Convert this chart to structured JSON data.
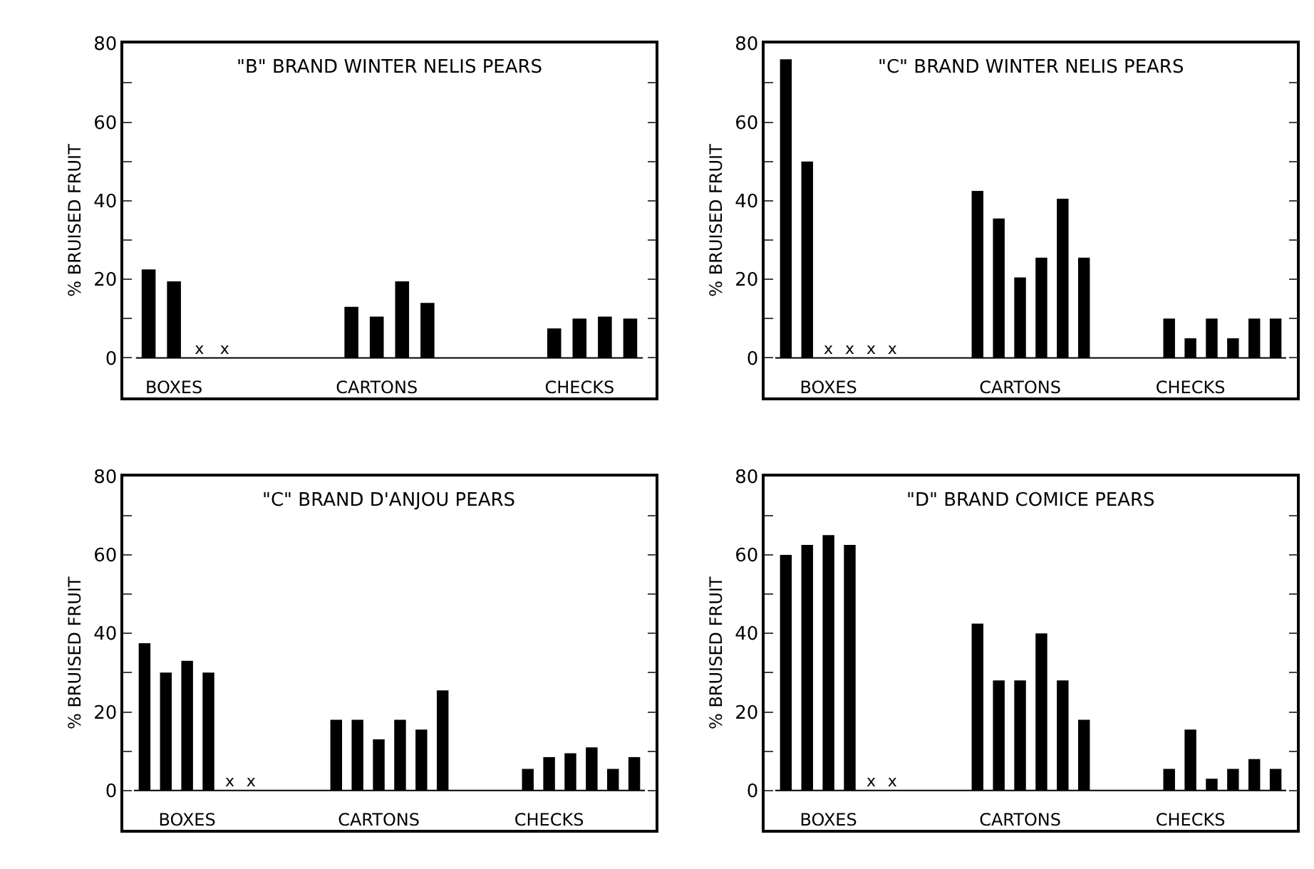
{
  "chart_data": [
    {
      "type": "bar",
      "title": "\"B\" BRAND WINTER NELIS PEARS",
      "ylabel": "% BRUISED FRUIT",
      "color": "#000000",
      "categories": [
        null,
        "BOXES",
        null,
        null,
        null,
        null,
        null,
        null,
        null,
        "CARTONS",
        null,
        null,
        null,
        null,
        null,
        null,
        null,
        "CHECKS",
        null,
        null
      ],
      "values": [
        22.5,
        19.5,
        0,
        0,
        null,
        null,
        null,
        null,
        13,
        10.5,
        19.5,
        14,
        null,
        null,
        null,
        null,
        7.5,
        10,
        10.5,
        10
      ],
      "value_labels": [
        null,
        null,
        "x",
        "x",
        null,
        null,
        null,
        null,
        null,
        null,
        null,
        null,
        null,
        null,
        null,
        null,
        null,
        null,
        null,
        null
      ],
      "ylim": [
        -10,
        80
      ],
      "yticks": [
        0,
        {
          "value": 10,
          "label": null
        },
        20,
        {
          "value": 30,
          "label": null
        },
        40,
        {
          "value": 50,
          "label": null
        },
        60,
        {
          "value": 70,
          "label": null
        },
        80
      ]
    },
    {
      "type": "bar",
      "title": "\"C\" BRAND WINTER NELIS PEARS",
      "ylabel": "% BRUISED FRUIT",
      "color": "#000000",
      "categories": [
        null,
        null,
        "BOXES",
        null,
        null,
        null,
        null,
        null,
        null,
        null,
        null,
        "CARTONS",
        null,
        null,
        null,
        null,
        null,
        null,
        null,
        "CHECKS",
        null,
        null,
        null,
        null
      ],
      "values": [
        76,
        50,
        0,
        0,
        0,
        0,
        null,
        null,
        null,
        42.5,
        35.5,
        20.5,
        25.5,
        40.5,
        25.5,
        null,
        null,
        null,
        10,
        5,
        10,
        5,
        10,
        10
      ],
      "value_labels": [
        null,
        null,
        "x",
        "x",
        "x",
        "x",
        null,
        null,
        null,
        null,
        null,
        null,
        null,
        null,
        null,
        null,
        null,
        null,
        null,
        null,
        null,
        null,
        null,
        null
      ],
      "ylim": [
        -10,
        80
      ],
      "yticks": [
        0,
        {
          "value": 10,
          "label": null
        },
        20,
        {
          "value": 30,
          "label": null
        },
        40,
        {
          "value": 50,
          "label": null
        },
        60,
        {
          "value": 70,
          "label": null
        },
        80
      ]
    },
    {
      "type": "bar",
      "title": "\"C\" BRAND D'ANJOU PEARS",
      "ylabel": "% BRUISED FRUIT",
      "color": "#000000",
      "categories": [
        null,
        null,
        "BOXES",
        null,
        null,
        null,
        null,
        null,
        null,
        null,
        null,
        "CARTONS",
        null,
        null,
        null,
        null,
        null,
        null,
        null,
        "CHECKS",
        null,
        null,
        null,
        null
      ],
      "values": [
        37.5,
        30,
        33,
        30,
        0,
        0,
        null,
        null,
        null,
        18,
        18,
        13,
        18,
        15.5,
        25.5,
        null,
        null,
        null,
        5.5,
        8.5,
        9.5,
        11,
        5.5,
        8.5
      ],
      "value_labels": [
        null,
        null,
        null,
        null,
        "x",
        "x",
        null,
        null,
        null,
        null,
        null,
        null,
        null,
        null,
        null,
        null,
        null,
        null,
        null,
        null,
        null,
        null,
        null,
        null
      ],
      "ylim": [
        -10,
        80
      ],
      "yticks": [
        0,
        {
          "value": 10,
          "label": null
        },
        20,
        {
          "value": 30,
          "label": null
        },
        40,
        {
          "value": 50,
          "label": null
        },
        60,
        {
          "value": 70,
          "label": null
        },
        80
      ]
    },
    {
      "type": "bar",
      "title": "\"D\" BRAND COMICE PEARS",
      "ylabel": "% BRUISED FRUIT",
      "color": "#000000",
      "categories": [
        null,
        null,
        "BOXES",
        null,
        null,
        null,
        null,
        null,
        null,
        null,
        null,
        "CARTONS",
        null,
        null,
        null,
        null,
        null,
        null,
        null,
        "CHECKS",
        null,
        null,
        null,
        null
      ],
      "values": [
        60,
        62.5,
        65,
        62.5,
        0,
        0,
        null,
        null,
        null,
        42.5,
        28,
        28,
        40,
        28,
        18,
        null,
        null,
        null,
        5.5,
        15.5,
        3,
        5.5,
        8,
        5.5
      ],
      "value_labels": [
        null,
        null,
        null,
        null,
        "x",
        "x",
        null,
        null,
        null,
        null,
        null,
        null,
        null,
        null,
        null,
        null,
        null,
        null,
        null,
        null,
        null,
        null,
        null,
        null
      ],
      "ylim": [
        -10,
        80
      ],
      "yticks": [
        0,
        {
          "value": 10,
          "label": null
        },
        20,
        {
          "value": 30,
          "label": null
        },
        40,
        {
          "value": 50,
          "label": null
        },
        60,
        {
          "value": 70,
          "label": null
        },
        80
      ]
    }
  ]
}
